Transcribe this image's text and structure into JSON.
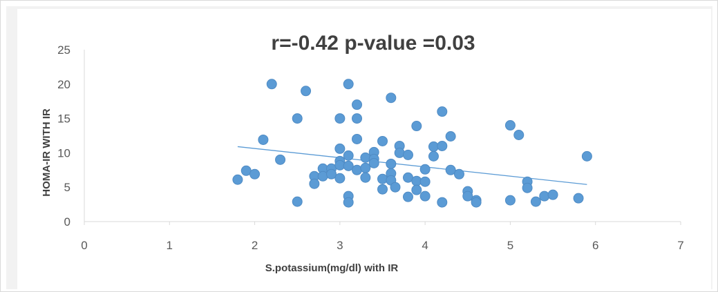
{
  "chart_data": {
    "type": "scatter",
    "title": "r=-0.42 p-value =0.03",
    "xlabel": "S.potassium(mg/dl) with IR",
    "ylabel": "HOMA-IR WITH IR",
    "xlim": [
      0,
      7
    ],
    "ylim": [
      0,
      25
    ],
    "x_ticks": [
      "0",
      "1",
      "2",
      "3",
      "4",
      "5",
      "6",
      "7"
    ],
    "y_ticks": [
      "0",
      "5",
      "10",
      "15",
      "20",
      "25"
    ],
    "grid": false,
    "legend": "none",
    "marker_color": "#5b9bd5",
    "trendline": {
      "type": "linear",
      "x": [
        1.8,
        5.9
      ],
      "y": [
        10.9,
        5.4
      ],
      "color": "#5b9bd5"
    },
    "points": [
      {
        "x": 1.8,
        "y": 6.1
      },
      {
        "x": 1.9,
        "y": 7.4
      },
      {
        "x": 2.0,
        "y": 6.9
      },
      {
        "x": 2.1,
        "y": 11.9
      },
      {
        "x": 2.2,
        "y": 20.0
      },
      {
        "x": 2.3,
        "y": 9.0
      },
      {
        "x": 2.5,
        "y": 15.0
      },
      {
        "x": 2.5,
        "y": 2.9
      },
      {
        "x": 2.6,
        "y": 19.0
      },
      {
        "x": 2.7,
        "y": 6.6
      },
      {
        "x": 2.7,
        "y": 5.5
      },
      {
        "x": 2.8,
        "y": 7.7
      },
      {
        "x": 2.8,
        "y": 6.6
      },
      {
        "x": 2.9,
        "y": 7.7
      },
      {
        "x": 2.9,
        "y": 6.9
      },
      {
        "x": 3.0,
        "y": 15.0
      },
      {
        "x": 3.0,
        "y": 10.6
      },
      {
        "x": 3.0,
        "y": 8.8
      },
      {
        "x": 3.0,
        "y": 8.2
      },
      {
        "x": 3.0,
        "y": 6.3
      },
      {
        "x": 3.1,
        "y": 20.0
      },
      {
        "x": 3.1,
        "y": 9.6
      },
      {
        "x": 3.1,
        "y": 8.1
      },
      {
        "x": 3.1,
        "y": 3.7
      },
      {
        "x": 3.1,
        "y": 2.8
      },
      {
        "x": 3.2,
        "y": 17.0
      },
      {
        "x": 3.2,
        "y": 15.0
      },
      {
        "x": 3.2,
        "y": 12.0
      },
      {
        "x": 3.2,
        "y": 7.5
      },
      {
        "x": 3.3,
        "y": 9.3
      },
      {
        "x": 3.3,
        "y": 7.8
      },
      {
        "x": 3.3,
        "y": 6.4
      },
      {
        "x": 3.4,
        "y": 10.1
      },
      {
        "x": 3.4,
        "y": 9.1
      },
      {
        "x": 3.4,
        "y": 8.5
      },
      {
        "x": 3.5,
        "y": 11.7
      },
      {
        "x": 3.5,
        "y": 6.2
      },
      {
        "x": 3.5,
        "y": 4.7
      },
      {
        "x": 3.6,
        "y": 18.0
      },
      {
        "x": 3.6,
        "y": 8.4
      },
      {
        "x": 3.6,
        "y": 7.0
      },
      {
        "x": 3.6,
        "y": 6.0
      },
      {
        "x": 3.65,
        "y": 5.0
      },
      {
        "x": 3.7,
        "y": 11.0
      },
      {
        "x": 3.7,
        "y": 10.0
      },
      {
        "x": 3.8,
        "y": 9.7
      },
      {
        "x": 3.8,
        "y": 6.4
      },
      {
        "x": 3.8,
        "y": 3.6
      },
      {
        "x": 3.9,
        "y": 13.9
      },
      {
        "x": 3.9,
        "y": 5.9
      },
      {
        "x": 3.9,
        "y": 4.6
      },
      {
        "x": 4.0,
        "y": 7.6
      },
      {
        "x": 4.0,
        "y": 5.8
      },
      {
        "x": 4.0,
        "y": 3.7
      },
      {
        "x": 4.1,
        "y": 10.9
      },
      {
        "x": 4.1,
        "y": 9.5
      },
      {
        "x": 4.2,
        "y": 16.0
      },
      {
        "x": 4.2,
        "y": 11.0
      },
      {
        "x": 4.2,
        "y": 2.8
      },
      {
        "x": 4.3,
        "y": 12.4
      },
      {
        "x": 4.3,
        "y": 7.5
      },
      {
        "x": 4.4,
        "y": 6.9
      },
      {
        "x": 4.5,
        "y": 4.4
      },
      {
        "x": 4.5,
        "y": 3.7
      },
      {
        "x": 4.6,
        "y": 3.1
      },
      {
        "x": 4.6,
        "y": 2.8
      },
      {
        "x": 5.0,
        "y": 14.0
      },
      {
        "x": 5.0,
        "y": 3.1
      },
      {
        "x": 5.1,
        "y": 12.6
      },
      {
        "x": 5.2,
        "y": 5.8
      },
      {
        "x": 5.2,
        "y": 4.9
      },
      {
        "x": 5.3,
        "y": 2.9
      },
      {
        "x": 5.4,
        "y": 3.7
      },
      {
        "x": 5.5,
        "y": 3.9
      },
      {
        "x": 5.8,
        "y": 3.4
      },
      {
        "x": 5.9,
        "y": 9.5
      }
    ]
  }
}
